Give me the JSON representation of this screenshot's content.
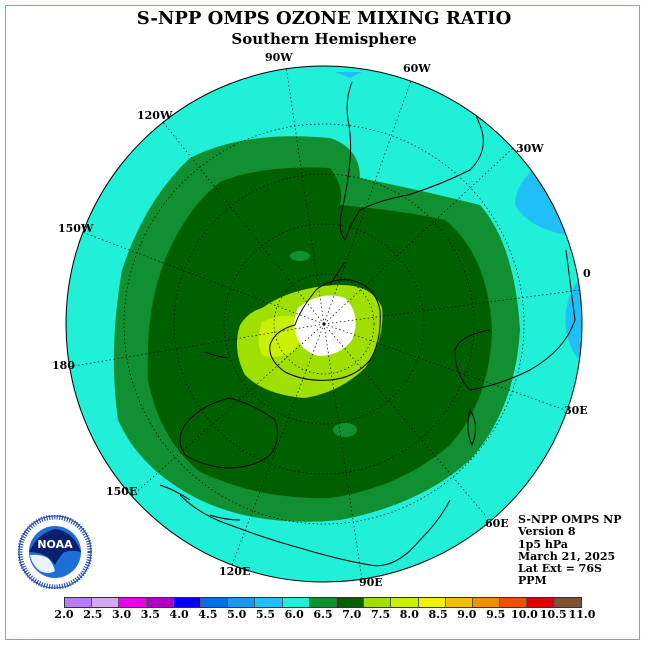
{
  "header": {
    "title": "S-NPP OMPS OZONE MIXING RATIO",
    "subtitle": "Southern Hemisphere"
  },
  "longitude_labels": {
    "lon_90w": "90W",
    "lon_60w": "60W",
    "lon_120w": "120W",
    "lon_30w": "30W",
    "lon_150w": "150W",
    "lon_0": "0",
    "lon_180": "180",
    "lon_30e": "30E",
    "lon_150e": "150E",
    "lon_60e": "60E",
    "lon_120e": "120E",
    "lon_90e": "90E"
  },
  "info": {
    "instrument": "S-NPP OMPS NP",
    "version": "Version 8",
    "level": "1p5 hPa",
    "date": "March 21, 2025",
    "lat_ext": "Lat Ext = 76S",
    "units": "PPM"
  },
  "logo": {
    "text": "NOAA",
    "icon": "noaa-logo"
  },
  "legend": {
    "ticks": [
      "2.0",
      "2.5",
      "3.0",
      "3.5",
      "4.0",
      "4.5",
      "5.0",
      "5.5",
      "6.0",
      "6.5",
      "7.0",
      "7.5",
      "8.0",
      "8.5",
      "9.0",
      "9.5",
      "10.0",
      "10.5",
      "11.0"
    ],
    "colors": [
      "#b77bf3",
      "#d6a6f5",
      "#ee00ee",
      "#b000c8",
      "#0000f0",
      "#0070e8",
      "#1898f0",
      "#20bff8",
      "#20f0d8",
      "#109030",
      "#006000",
      "#a0e000",
      "#c8f000",
      "#f0f000",
      "#f0c000",
      "#f09000",
      "#f05000",
      "#e00000",
      "#805030"
    ]
  },
  "map": {
    "projection": "south polar stereographic",
    "background_color": "#20f0d8",
    "contours": [
      {
        "level": "5.5",
        "color": "#20bff8"
      },
      {
        "level": "6.0",
        "color": "#20f0d8"
      },
      {
        "level": "6.5",
        "color": "#109030"
      },
      {
        "level": "7.0",
        "color": "#006000"
      },
      {
        "level": "7.5",
        "color": "#a0e000"
      },
      {
        "level": "8.0",
        "color": "#c8f000"
      },
      {
        "level": "missing",
        "color": "#ffffff"
      }
    ]
  }
}
